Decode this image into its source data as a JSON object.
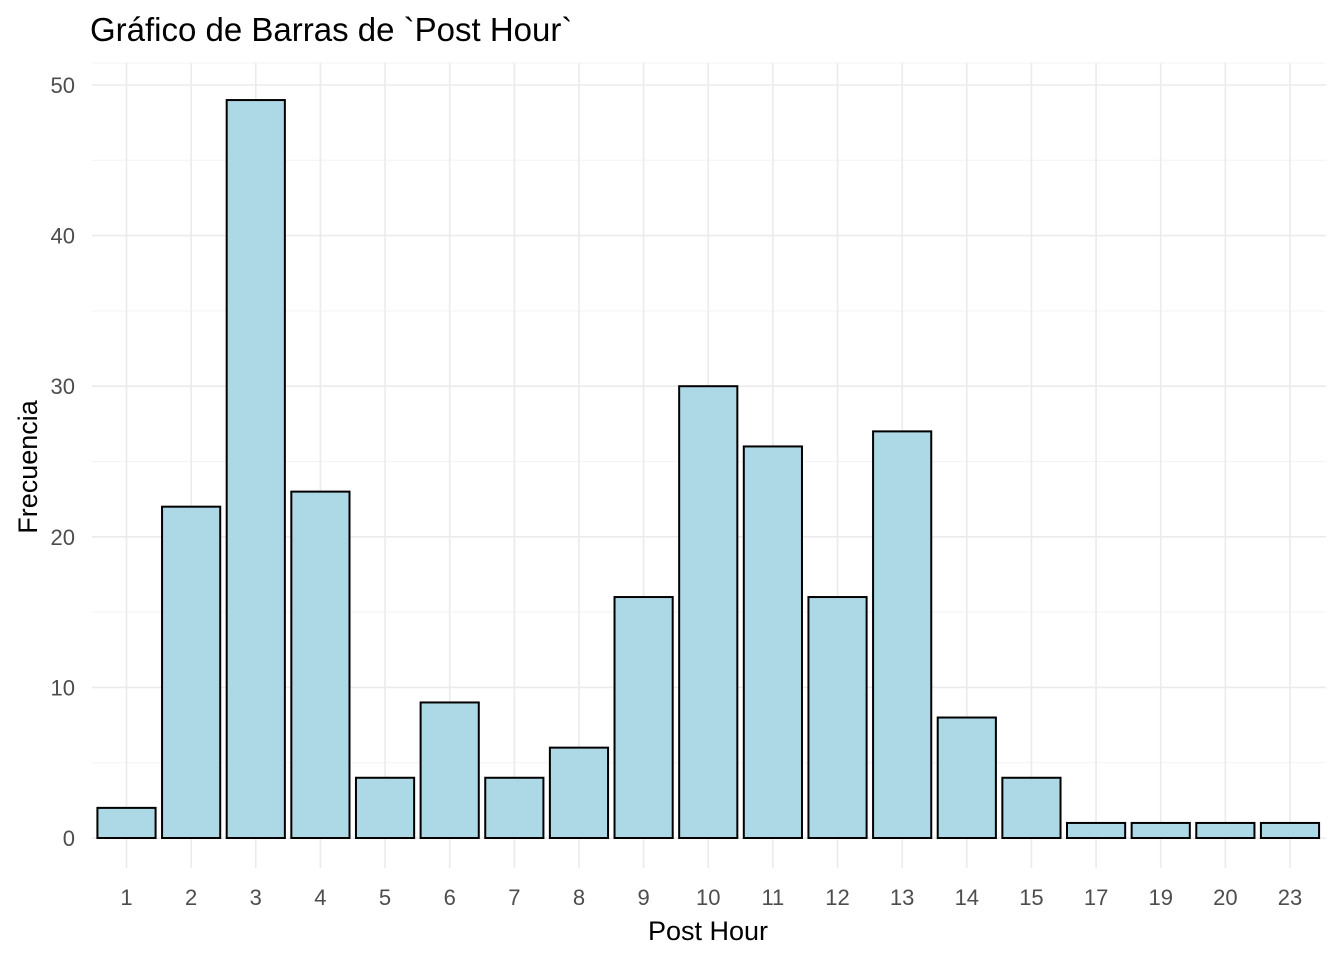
{
  "chart_data": {
    "type": "bar",
    "title": "Gráfico de Barras de `Post Hour`",
    "xlabel": "Post Hour",
    "ylabel": "Frecuencia",
    "categories": [
      "1",
      "2",
      "3",
      "4",
      "5",
      "6",
      "7",
      "8",
      "9",
      "10",
      "11",
      "12",
      "13",
      "14",
      "15",
      "17",
      "19",
      "20",
      "23"
    ],
    "values": [
      2,
      22,
      49,
      23,
      4,
      9,
      4,
      6,
      16,
      30,
      26,
      16,
      27,
      8,
      4,
      1,
      1,
      1,
      1
    ],
    "yticks": [
      0,
      10,
      20,
      30,
      40,
      50
    ],
    "ylim": [
      0,
      50
    ],
    "grid": true,
    "legend": "none",
    "colors": {
      "bar_fill": "#add8e6",
      "bar_outline": "#000000",
      "grid": "#ebebeb",
      "tick_text": "#4d4d4d"
    }
  }
}
